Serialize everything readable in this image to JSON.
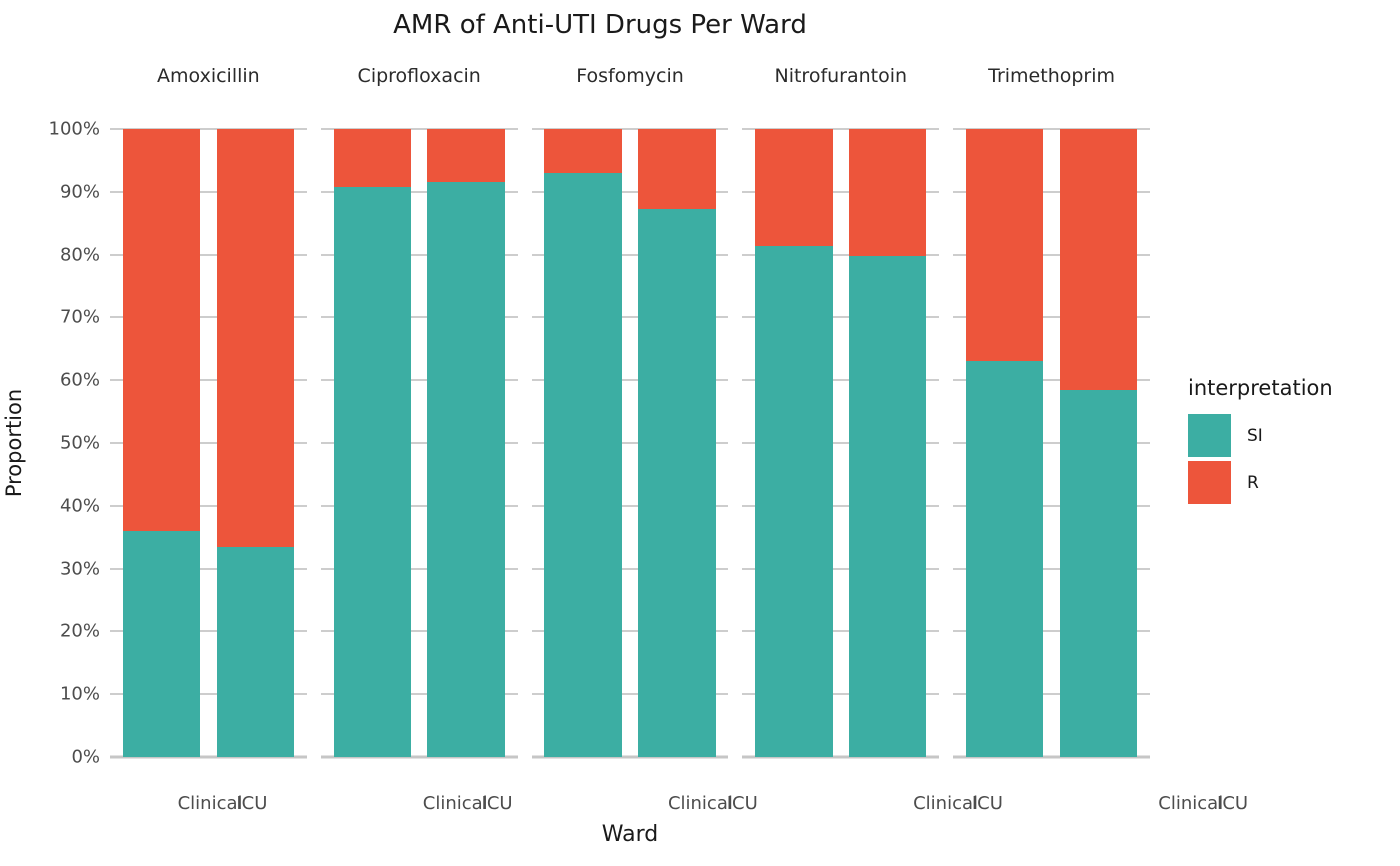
{
  "title": "AMR of Anti-UTI Drugs Per Ward",
  "axes": {
    "y_title": "Proportion",
    "x_title": "Ward",
    "y_ticks": [
      "100%",
      "90%",
      "80%",
      "70%",
      "60%",
      "50%",
      "40%",
      "30%",
      "20%",
      "10%",
      "0%"
    ]
  },
  "legend": {
    "title": "interpretation",
    "items": [
      {
        "label": "SI",
        "color": "#3CAEA3"
      },
      {
        "label": "R",
        "color": "#ED553B"
      }
    ]
  },
  "colors": {
    "si": "#3CAEA3",
    "r": "#ED553B",
    "gridline": "#CDCDCD",
    "axis_text": "#4D4D4D",
    "title_text": "#1A1A1A",
    "background": "#FFFFFF"
  },
  "chart_data": {
    "type": "bar",
    "stacked": true,
    "units": "percent",
    "title": "AMR of Anti-UTI Drugs Per Ward",
    "xlabel": "Ward",
    "ylabel": "Proportion",
    "ylim": [
      0,
      100
    ],
    "yticks_percent": [
      0,
      10,
      20,
      30,
      40,
      50,
      60,
      70,
      80,
      90,
      100
    ],
    "grid": true,
    "legend_title": "interpretation",
    "legend_position": "right",
    "legend_entries": [
      "SI",
      "R"
    ],
    "series_colors": {
      "SI": "#3CAEA3",
      "R": "#ED553B"
    },
    "categories": [
      "Clinical",
      "ICU"
    ],
    "facet_labels": [
      "Amoxicillin",
      "Ciprofloxacin",
      "Fosfomycin",
      "Nitrofurantoin",
      "Trimethoprim"
    ],
    "facets": [
      {
        "label": "Amoxicillin",
        "bars": [
          {
            "ward": "Clinical",
            "SI": 36.0,
            "R": 64.0
          },
          {
            "ward": "ICU",
            "SI": 33.5,
            "R": 66.5
          }
        ]
      },
      {
        "label": "Ciprofloxacin",
        "bars": [
          {
            "ward": "Clinical",
            "SI": 90.8,
            "R": 9.2
          },
          {
            "ward": "ICU",
            "SI": 91.5,
            "R": 8.5
          }
        ]
      },
      {
        "label": "Fosfomycin",
        "bars": [
          {
            "ward": "Clinical",
            "SI": 93.0,
            "R": 7.0
          },
          {
            "ward": "ICU",
            "SI": 87.3,
            "R": 12.7
          }
        ]
      },
      {
        "label": "Nitrofurantoin",
        "bars": [
          {
            "ward": "Clinical",
            "SI": 81.3,
            "R": 18.7
          },
          {
            "ward": "ICU",
            "SI": 79.7,
            "R": 20.3
          }
        ]
      },
      {
        "label": "Trimethoprim",
        "bars": [
          {
            "ward": "Clinical",
            "SI": 63.0,
            "R": 37.0
          },
          {
            "ward": "ICU",
            "SI": 58.4,
            "R": 41.6
          }
        ]
      }
    ]
  }
}
